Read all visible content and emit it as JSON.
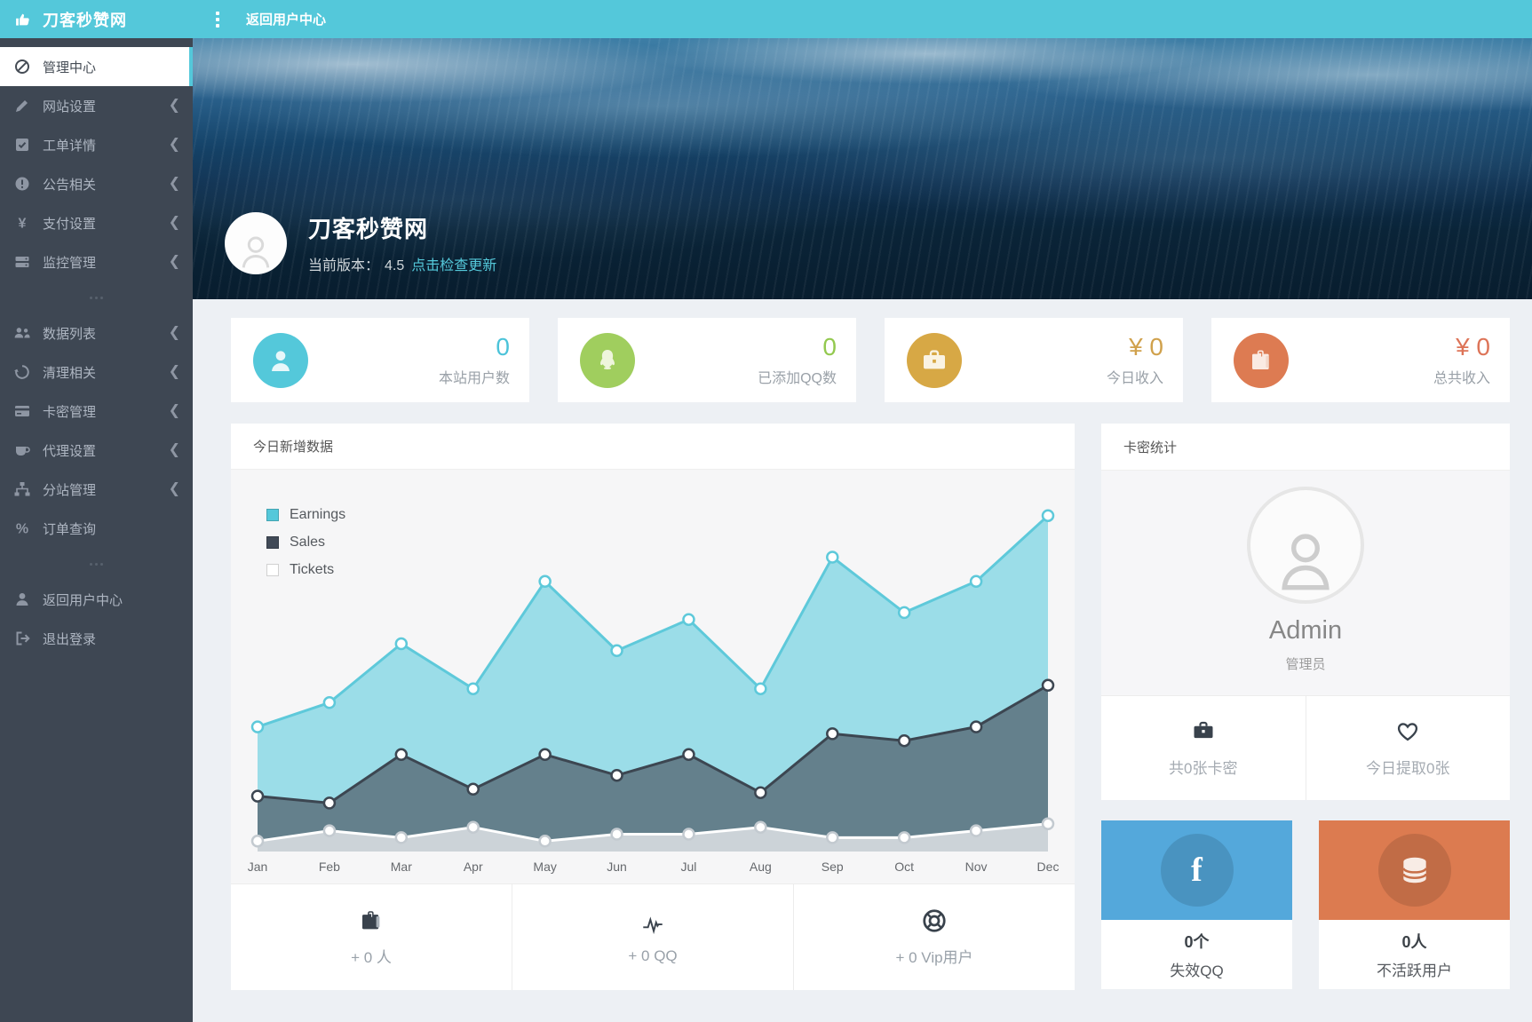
{
  "topbar": {
    "brand": "刀客秒赞网",
    "back_link": "返回用户中心"
  },
  "sidebar": {
    "items": [
      {
        "label": "管理中心",
        "icon": "dashboard-icon",
        "active": true
      },
      {
        "label": "网站设置",
        "icon": "pencil-icon",
        "chevron": true
      },
      {
        "label": "工单详情",
        "icon": "check-square-icon",
        "chevron": true
      },
      {
        "label": "公告相关",
        "icon": "exclamation-icon",
        "chevron": true
      },
      {
        "label": "支付设置",
        "icon": "yen-icon",
        "chevron": true
      },
      {
        "label": "监控管理",
        "icon": "server-icon",
        "chevron": true
      },
      {
        "divider": true
      },
      {
        "label": "数据列表",
        "icon": "users-icon",
        "chevron": true
      },
      {
        "label": "清理相关",
        "icon": "recycle-icon",
        "chevron": true
      },
      {
        "label": "卡密管理",
        "icon": "credit-card-icon",
        "chevron": true
      },
      {
        "label": "代理设置",
        "icon": "cup-icon",
        "chevron": true
      },
      {
        "label": "分站管理",
        "icon": "sitemap-icon",
        "chevron": true
      },
      {
        "label": "订单查询",
        "icon": "percent-icon"
      },
      {
        "divider": true
      },
      {
        "label": "返回用户中心",
        "icon": "user-icon"
      },
      {
        "label": "退出登录",
        "icon": "signout-icon"
      }
    ]
  },
  "hero": {
    "title": "刀客秒赞网",
    "version_label": "当前版本：",
    "version": "4.5",
    "update_link": "点击检查更新"
  },
  "stat_cards": [
    {
      "value": "0",
      "label": "本站用户数",
      "icon": "user-icon",
      "accent": "#54c8da"
    },
    {
      "value": "0",
      "label": "已添加QQ数",
      "icon": "qq-icon",
      "accent": "#a0ce5e"
    },
    {
      "value": "¥ 0",
      "label": "今日收入",
      "icon": "briefcase-icon",
      "accent": "#d7a845"
    },
    {
      "value": "¥ 0",
      "label": "总共收入",
      "icon": "wallet-icon",
      "accent": "#dd7b52"
    }
  ],
  "chart_panel": {
    "title": "今日新增数据"
  },
  "chart_data": {
    "type": "area",
    "categories": [
      "Jan",
      "Feb",
      "Mar",
      "Apr",
      "May",
      "Jun",
      "Jul",
      "Aug",
      "Sep",
      "Oct",
      "Nov",
      "Dec"
    ],
    "series": [
      {
        "name": "Earnings",
        "values": [
          36,
          43,
          60,
          47,
          78,
          58,
          67,
          47,
          85,
          69,
          78,
          97
        ],
        "fill": "#9bdde8",
        "stroke": "#5ec9da",
        "dot": "#5ec9da",
        "swatch": "#54c8da"
      },
      {
        "name": "Sales",
        "values": [
          16,
          14,
          28,
          18,
          28,
          22,
          28,
          17,
          34,
          32,
          36,
          48
        ],
        "fill": "#64808c",
        "stroke": "#3c4651",
        "dot": "#3c4651",
        "swatch": "#414a57"
      },
      {
        "name": "Tickets",
        "values": [
          3,
          6,
          4,
          7,
          3,
          5,
          5,
          7,
          4,
          4,
          6,
          8
        ],
        "fill": "#ccd3d8",
        "stroke": "#ffffff",
        "dot": "#c3cad0",
        "swatch": "#ffffff"
      }
    ],
    "title": "今日新增数据",
    "xlabel": "",
    "ylabel": "",
    "ylim": [
      0,
      110
    ],
    "grid": false,
    "legend_position": "top-left"
  },
  "today_stats": [
    {
      "icon": "wallet-icon",
      "label": "+ 0 人"
    },
    {
      "icon": "pulse-icon",
      "label": "+ 0 QQ"
    },
    {
      "icon": "lifering-icon",
      "label": "+ 0 Vip用户"
    }
  ],
  "right_panel": {
    "title": "卡密统计",
    "user": {
      "name": "Admin",
      "role": "管理员"
    },
    "cells": [
      {
        "icon": "briefcase-icon",
        "label": "共0张卡密"
      },
      {
        "icon": "heart-icon",
        "label": "今日提取0张"
      }
    ],
    "cards": [
      {
        "icon": "facebook-icon",
        "value": "0个",
        "label": "失效QQ",
        "color": "#54a8db"
      },
      {
        "icon": "database-icon",
        "value": "0人",
        "label": "不活跃用户",
        "color": "#dc7b50"
      }
    ]
  }
}
